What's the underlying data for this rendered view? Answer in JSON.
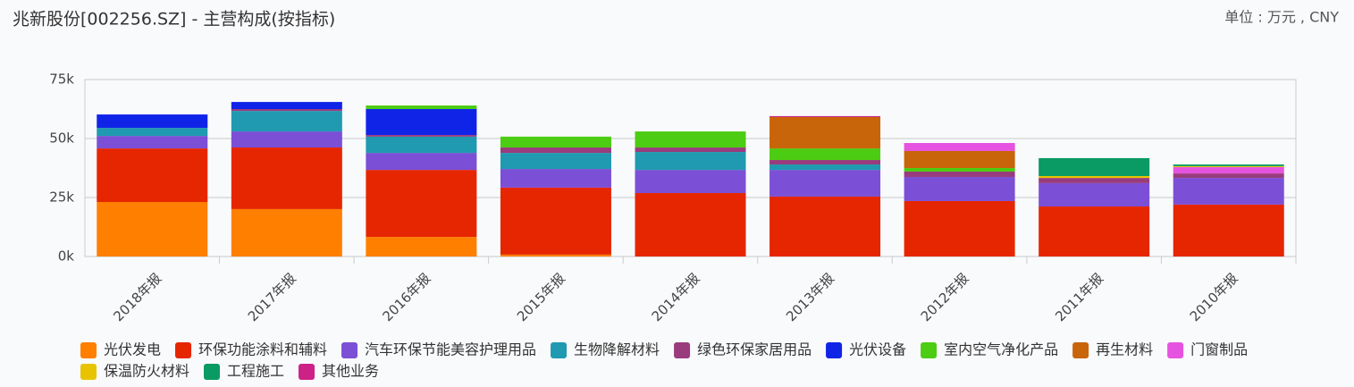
{
  "chart_data": {
    "type": "stacked-bar",
    "title": "兆新股份[002256.SZ] - 主营构成(按指标)",
    "unit": "单位 : 万元 , CNY",
    "categories": [
      "2018年报",
      "2017年报",
      "2016年报",
      "2015年报",
      "2014年报",
      "2013年报",
      "2012年报",
      "2011年报",
      "2010年报"
    ],
    "ylim": [
      0,
      75000
    ],
    "yticks": [
      {
        "value": 0,
        "label": "0k"
      },
      {
        "value": 25000,
        "label": "25k"
      },
      {
        "value": 50000,
        "label": "50k"
      },
      {
        "value": 75000,
        "label": "75k"
      }
    ],
    "grid": true,
    "series": [
      {
        "name": "光伏发电",
        "color": "#ff7f00",
        "values": [
          23100,
          20100,
          8300,
          800,
          null,
          null,
          null,
          null,
          null
        ]
      },
      {
        "name": "环保功能涂料和辅料",
        "color": "#e62600",
        "values": [
          22700,
          26100,
          28400,
          28400,
          26900,
          25400,
          23500,
          21200,
          22000
        ]
      },
      {
        "name": "汽车环保节能美容护理用品",
        "color": "#7b4fd6",
        "values": [
          5300,
          6800,
          7200,
          7900,
          9800,
          11300,
          10200,
          9900,
          11300
        ]
      },
      {
        "name": "生物降解材料",
        "color": "#1f9ab0",
        "values": [
          3400,
          8700,
          6900,
          6800,
          7600,
          2300,
          null,
          null,
          null
        ]
      },
      {
        "name": "绿色环保家居用品",
        "color": "#993c7e",
        "values": [
          null,
          800,
          700,
          2300,
          1900,
          1900,
          2300,
          2200,
          1900
        ]
      },
      {
        "name": "光伏设备",
        "color": "#1024e8",
        "values": [
          5700,
          3000,
          11000,
          null,
          null,
          null,
          null,
          null,
          null
        ]
      },
      {
        "name": "室内空气净化产品",
        "color": "#4ccc12",
        "values": [
          null,
          null,
          1500,
          4600,
          6800,
          4900,
          1500,
          null,
          null
        ]
      },
      {
        "name": "再生材料",
        "color": "#c8640a",
        "values": [
          null,
          null,
          null,
          null,
          null,
          13300,
          7200,
          null,
          null
        ]
      },
      {
        "name": "门窗制品",
        "color": "#e653e0",
        "values": [
          null,
          null,
          null,
          null,
          null,
          null,
          3400,
          null,
          2700
        ]
      },
      {
        "name": "保温防火材料",
        "color": "#e8c400",
        "values": [
          null,
          null,
          null,
          null,
          null,
          null,
          null,
          800,
          400
        ]
      },
      {
        "name": "工程施工",
        "color": "#0a9a63",
        "values": [
          null,
          null,
          null,
          null,
          null,
          null,
          null,
          7600,
          700
        ]
      },
      {
        "name": "其他业务",
        "color": "#cc2288",
        "values": [
          null,
          null,
          null,
          null,
          null,
          400,
          null,
          null,
          null
        ]
      }
    ]
  }
}
